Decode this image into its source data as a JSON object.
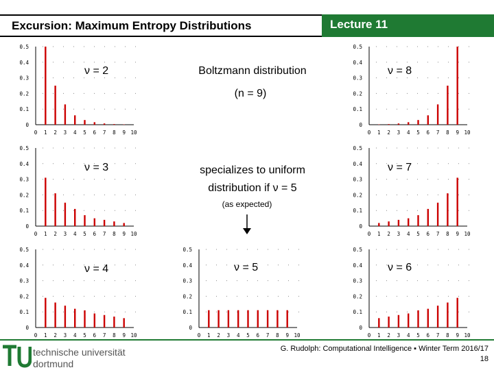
{
  "header": {
    "title": "Excursion: Maximum Entropy Distributions",
    "lecture": "Lecture 11"
  },
  "labels": {
    "nu2": "ν = 2",
    "nu3": "ν = 3",
    "nu4": "ν = 4",
    "nu5": "ν = 5",
    "nu6": "ν = 6",
    "nu7": "ν = 7",
    "nu8": "ν = 8"
  },
  "text": {
    "boltzmann": "Boltzmann distribution",
    "n9": "(n = 9)",
    "uniform_line1": "specializes to uniform",
    "uniform_line2": "distribution if ν = 5",
    "expected": "(as expected)"
  },
  "footer": {
    "credit": "G. Rudolph: Computational Intelligence ▪ Winter Term 2016/17",
    "page": "18",
    "logo_line1": "technische universität",
    "logo_line2": "dortmund"
  },
  "colors": {
    "accent": "#1f7a33",
    "bar": "#cc0000"
  },
  "chart_data": [
    {
      "type": "bar",
      "nu": 2,
      "x": [
        1,
        2,
        3,
        4,
        5,
        6,
        7,
        8,
        9
      ],
      "values": [
        0.5,
        0.25,
        0.13,
        0.06,
        0.03,
        0.016,
        0.008,
        0.004,
        0.002
      ],
      "ylim": [
        0,
        0.5
      ],
      "yticks": [
        "0",
        "0.1",
        "0.2",
        "0.3",
        "0.4",
        "0.5"
      ],
      "xticks": [
        "0",
        "1",
        "2",
        "3",
        "4",
        "5",
        "6",
        "7",
        "8",
        "9",
        "10"
      ]
    },
    {
      "type": "bar",
      "nu": 3,
      "x": [
        1,
        2,
        3,
        4,
        5,
        6,
        7,
        8,
        9
      ],
      "values": [
        0.31,
        0.21,
        0.15,
        0.11,
        0.07,
        0.05,
        0.04,
        0.03,
        0.02
      ],
      "ylim": [
        0,
        0.5
      ],
      "yticks": [
        "0",
        "0.1",
        "0.2",
        "0.3",
        "0.4",
        "0.5"
      ],
      "xticks": [
        "0",
        "1",
        "2",
        "3",
        "4",
        "5",
        "6",
        "7",
        "8",
        "9",
        "10"
      ]
    },
    {
      "type": "bar",
      "nu": 4,
      "x": [
        1,
        2,
        3,
        4,
        5,
        6,
        7,
        8,
        9
      ],
      "values": [
        0.19,
        0.16,
        0.14,
        0.12,
        0.11,
        0.09,
        0.08,
        0.07,
        0.06
      ],
      "ylim": [
        0,
        0.5
      ],
      "yticks": [
        "0",
        "0.1",
        "0.2",
        "0.3",
        "0.4",
        "0.5"
      ],
      "xticks": [
        "0",
        "1",
        "2",
        "3",
        "4",
        "5",
        "6",
        "7",
        "8",
        "9",
        "10"
      ]
    },
    {
      "type": "bar",
      "nu": 5,
      "x": [
        1,
        2,
        3,
        4,
        5,
        6,
        7,
        8,
        9
      ],
      "values": [
        0.111,
        0.111,
        0.111,
        0.111,
        0.111,
        0.111,
        0.111,
        0.111,
        0.111
      ],
      "ylim": [
        0,
        0.5
      ],
      "yticks": [
        "0",
        "0.1",
        "0.2",
        "0.3",
        "0.4",
        "0.5"
      ],
      "xticks": [
        "0",
        "1",
        "2",
        "3",
        "4",
        "5",
        "6",
        "7",
        "8",
        "9",
        "10"
      ]
    },
    {
      "type": "bar",
      "nu": 6,
      "x": [
        1,
        2,
        3,
        4,
        5,
        6,
        7,
        8,
        9
      ],
      "values": [
        0.06,
        0.07,
        0.08,
        0.09,
        0.11,
        0.12,
        0.14,
        0.16,
        0.19
      ],
      "ylim": [
        0,
        0.5
      ],
      "yticks": [
        "0",
        "0.1",
        "0.2",
        "0.3",
        "0.4",
        "0.5"
      ],
      "xticks": [
        "0",
        "1",
        "2",
        "3",
        "4",
        "5",
        "6",
        "7",
        "8",
        "9",
        "10"
      ]
    },
    {
      "type": "bar",
      "nu": 7,
      "x": [
        1,
        2,
        3,
        4,
        5,
        6,
        7,
        8,
        9
      ],
      "values": [
        0.02,
        0.03,
        0.04,
        0.05,
        0.07,
        0.11,
        0.15,
        0.21,
        0.31
      ],
      "ylim": [
        0,
        0.5
      ],
      "yticks": [
        "0",
        "0.1",
        "0.2",
        "0.3",
        "0.4",
        "0.5"
      ],
      "xticks": [
        "0",
        "1",
        "2",
        "3",
        "4",
        "5",
        "6",
        "7",
        "8",
        "9",
        "10"
      ]
    },
    {
      "type": "bar",
      "nu": 8,
      "x": [
        1,
        2,
        3,
        4,
        5,
        6,
        7,
        8,
        9
      ],
      "values": [
        0.002,
        0.004,
        0.008,
        0.016,
        0.03,
        0.06,
        0.13,
        0.25,
        0.5
      ],
      "ylim": [
        0,
        0.5
      ],
      "yticks": [
        "0",
        "0.1",
        "0.2",
        "0.3",
        "0.4",
        "0.5"
      ],
      "xticks": [
        "0",
        "1",
        "2",
        "3",
        "4",
        "5",
        "6",
        "7",
        "8",
        "9",
        "10"
      ]
    }
  ]
}
